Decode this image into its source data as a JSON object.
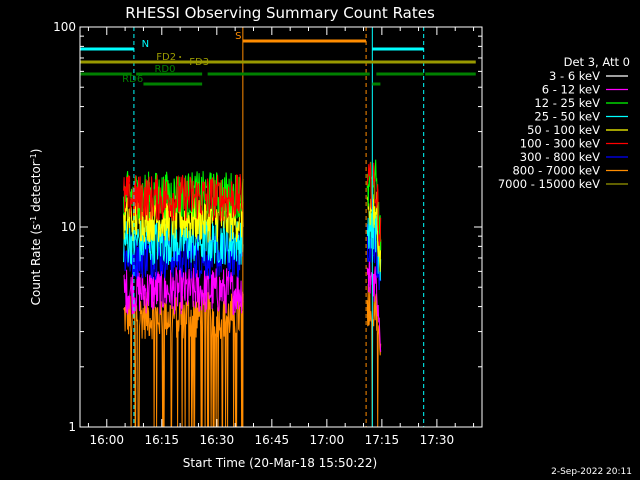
{
  "chart_data": {
    "type": "line",
    "title": "RHESSI Observing Summary Count Rates",
    "xlabel": "Start Time (20-Mar-18 15:50:22)",
    "ylabel_main": "Count Rate (s",
    "ylabel_sup1": "-1",
    "ylabel_mid": " detector",
    "ylabel_sup2": "-1",
    "ylabel_end": ")",
    "yscale": "log",
    "ylim": [
      1,
      100
    ],
    "y_ticks": [
      {
        "value": 1,
        "label": "1"
      },
      {
        "value": 10,
        "label": "10"
      },
      {
        "value": 100,
        "label": "100"
      }
    ],
    "x_range_min": [
      -7.3,
      102.3
    ],
    "x_ticks": [
      {
        "min": 0,
        "label": "16:00"
      },
      {
        "min": 15,
        "label": "16:15"
      },
      {
        "min": 30,
        "label": "16:30"
      },
      {
        "min": 45,
        "label": "16:45"
      },
      {
        "min": 60,
        "label": "17:00"
      },
      {
        "min": 75,
        "label": "17:15"
      },
      {
        "min": 90,
        "label": "17:30"
      }
    ],
    "legend_header": "Det 3, Att 0",
    "legend_placement": "right",
    "series": [
      {
        "name": "3 - 6 keV",
        "color": "#ffffff",
        "level": null
      },
      {
        "name": "6 - 12 keV",
        "color": "#ff00ff",
        "level": 4.8
      },
      {
        "name": "12 - 25 keV",
        "color": "#00ff00",
        "level": 14.5
      },
      {
        "name": "25 - 50 keV",
        "color": "#00ffff",
        "level": 8.5
      },
      {
        "name": "50 - 100 keV",
        "color": "#ffff00",
        "level": 11.0
      },
      {
        "name": "100 - 300 keV",
        "color": "#ff0000",
        "level": 14.0
      },
      {
        "name": "300 - 800 keV",
        "color": "#0000ff",
        "level": 7.2
      },
      {
        "name": "800 - 7000 keV",
        "color": "#ff8c00",
        "level": 3.6
      },
      {
        "name": "7000 - 15000 keV",
        "color": "#999900",
        "level": null
      }
    ],
    "data_intervals_min": [
      [
        4.6,
        37.3
      ],
      [
        71.0,
        74.6
      ]
    ],
    "time_markers": [
      {
        "min": 7.4,
        "color": "#00ffff",
        "style": "dashed"
      },
      {
        "min": 37.1,
        "color": "#ff8c00",
        "style": "solid"
      },
      {
        "min": 70.7,
        "color": "#ff8c00",
        "style": "dashed"
      },
      {
        "min": 72.4,
        "color": "#00ffff",
        "style": "solid"
      },
      {
        "min": 86.4,
        "color": "#00ffff",
        "style": "dashed"
      }
    ],
    "flag_bars": [
      {
        "label": "N",
        "color": "#00ffff",
        "y": 49,
        "segments": [
          [
            -7.3,
            7.4
          ],
          [
            72.4,
            86.4
          ]
        ],
        "label_at": 9.5
      },
      {
        "label": "S",
        "color": "#ff8c00",
        "y": 41,
        "segments": [
          [
            37.1,
            70.7
          ]
        ],
        "label_at": 35.0
      },
      {
        "label": "FD2",
        "color": "#999900",
        "y": 62,
        "segments": [
          [
            -7.3,
            100.6
          ]
        ],
        "label_at": 13.5
      },
      {
        "label": "FD3",
        "color": "#999900",
        "y": 67,
        "segments": [],
        "label_at": 22.5
      },
      {
        "label": "RD0",
        "color": "#008000",
        "y": 74,
        "segments": [
          [
            -7.3,
            6.8
          ],
          [
            8.0,
            26.0
          ],
          [
            27.5,
            71.7
          ],
          [
            73.5,
            86.4
          ],
          [
            86.8,
            100.6
          ]
        ],
        "label_at": 13.0
      },
      {
        "label": "RD6",
        "color": "#008000",
        "y": 84,
        "segments": [
          [
            10.0,
            26.0
          ],
          [
            72.4,
            74.6
          ]
        ],
        "label_at": 4.2
      }
    ],
    "timestamp": "2-Sep-2022 20:11"
  }
}
